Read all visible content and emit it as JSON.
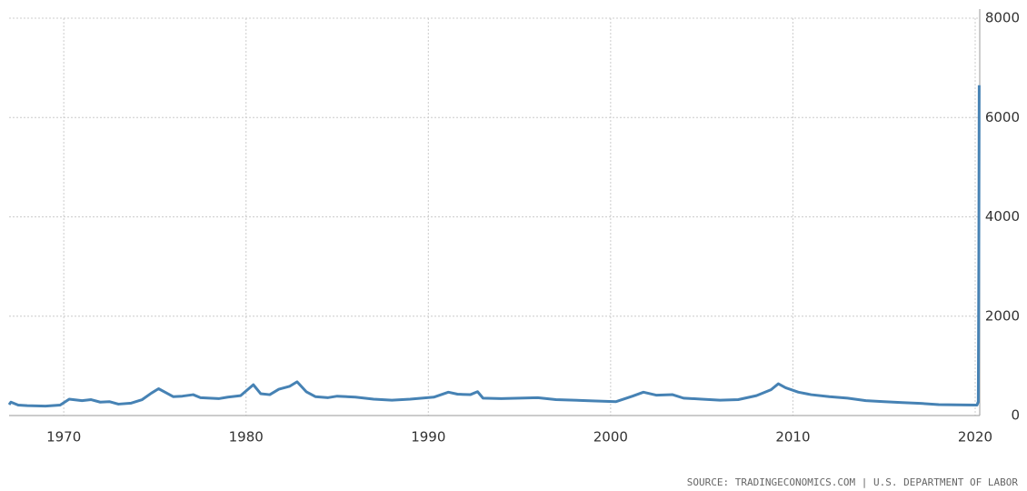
{
  "chart_data": {
    "type": "line",
    "source": "SOURCE: TRADINGECONOMICS.COM | U.S. DEPARTMENT OF LABOR",
    "color": "#4682b4",
    "x": [
      1967,
      1967.1,
      1967.5,
      1968,
      1969,
      1969.8,
      1970.3,
      1971,
      1971.5,
      1972,
      1972.5,
      1973,
      1973.7,
      1974.3,
      1974.8,
      1975.2,
      1975.6,
      1976,
      1976.5,
      1977.1,
      1977.5,
      1978,
      1978.5,
      1979,
      1979.7,
      1980.4,
      1980.8,
      1981.3,
      1981.8,
      1982.4,
      1982.8,
      1983.3,
      1983.8,
      1984.5,
      1985,
      1986,
      1987,
      1988,
      1989,
      1990.3,
      1991.1,
      1991.6,
      1992.3,
      1992.7,
      1993,
      1994,
      1995,
      1996,
      1997,
      1998,
      1999,
      2000.3,
      2001.2,
      2001.8,
      2002.5,
      2003.4,
      2004,
      2005,
      2006,
      2007,
      2008,
      2008.8,
      2009.2,
      2009.6,
      2010.3,
      2011,
      2012,
      2013,
      2014,
      2015,
      2016,
      2017,
      2018,
      2019,
      2020.1,
      2020.17,
      2020.2,
      2020.22
    ],
    "values": [
      220,
      270,
      210,
      200,
      190,
      210,
      330,
      300,
      320,
      270,
      280,
      230,
      250,
      320,
      450,
      540,
      460,
      380,
      390,
      420,
      360,
      350,
      340,
      370,
      400,
      620,
      440,
      420,
      530,
      590,
      680,
      480,
      380,
      360,
      390,
      370,
      330,
      310,
      330,
      370,
      470,
      430,
      420,
      480,
      350,
      340,
      350,
      360,
      320,
      310,
      295,
      280,
      390,
      470,
      410,
      420,
      350,
      330,
      310,
      320,
      400,
      520,
      640,
      560,
      470,
      420,
      380,
      350,
      300,
      280,
      260,
      245,
      220,
      215,
      210,
      280,
      3300,
      6650
    ],
    "xlim": [
      1967,
      2020.25
    ],
    "ylim": [
      0,
      8000
    ],
    "xticks": [
      1970,
      1980,
      1990,
      2000,
      2010,
      2020
    ],
    "yticks": [
      0,
      2000,
      4000,
      6000,
      8000
    ],
    "grid": true
  }
}
